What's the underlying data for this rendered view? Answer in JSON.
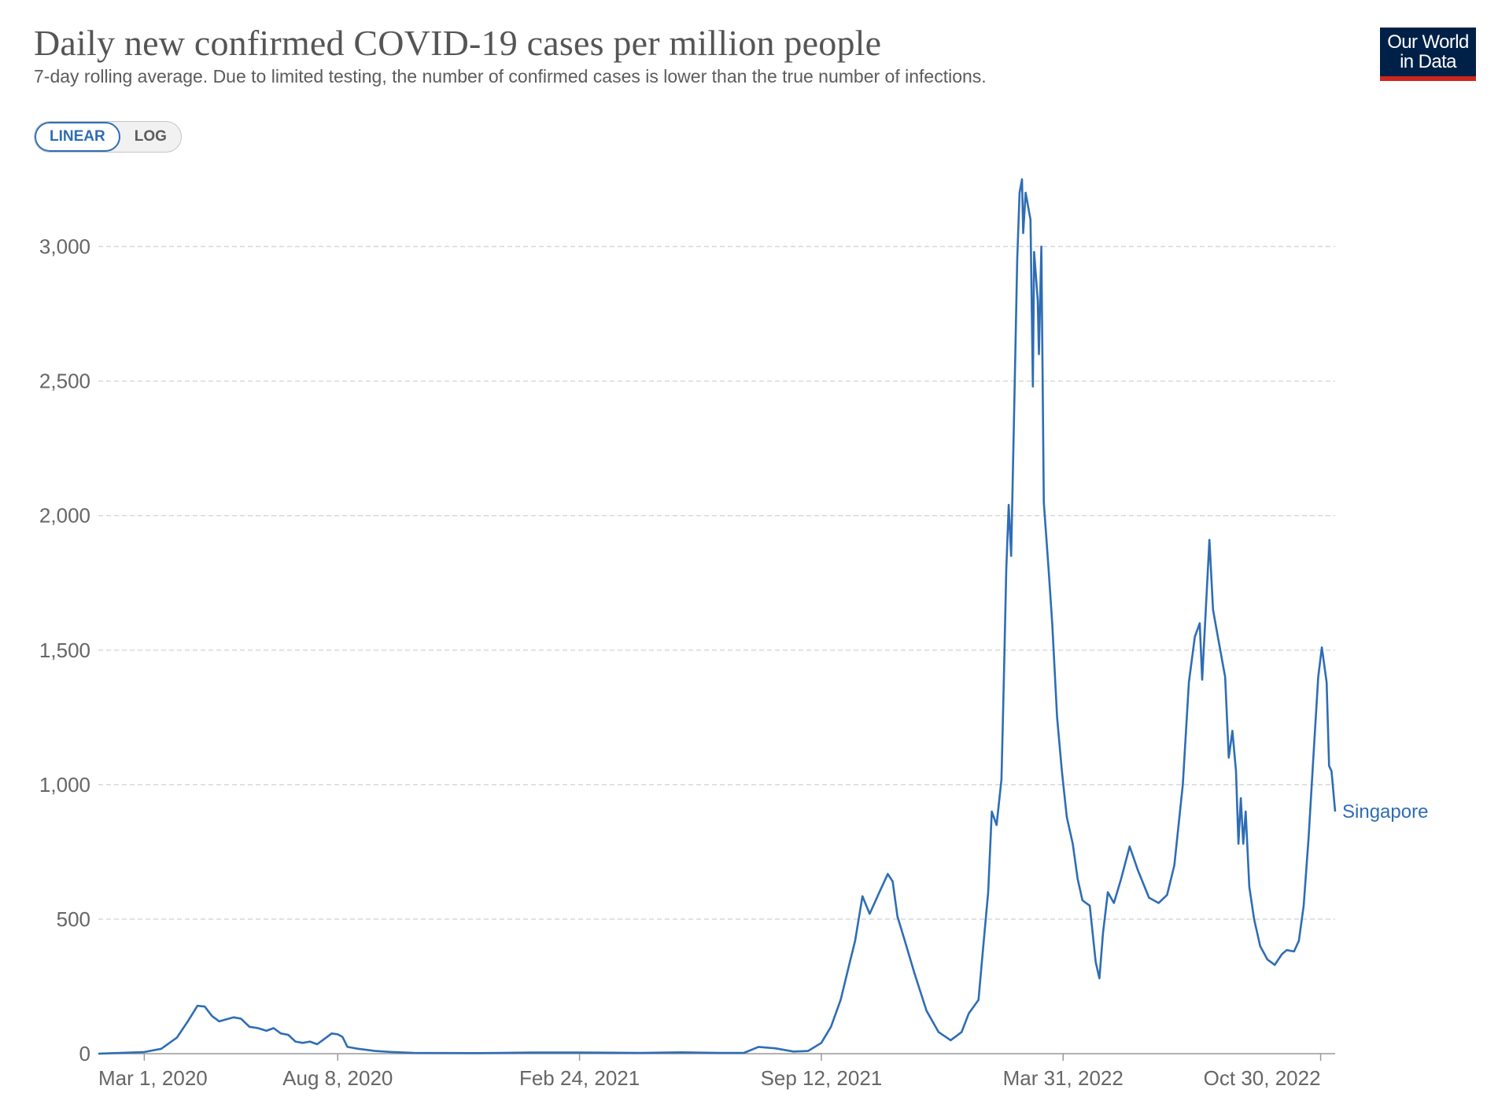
{
  "header": {
    "title": "Daily new confirmed COVID-19 cases per million people",
    "subtitle": "7-day rolling average. Due to limited testing, the number of confirmed cases is lower than the true number of infections.",
    "logo_line1": "Our World",
    "logo_line2": "in Data"
  },
  "scale_toggle": {
    "linear_label": "LINEAR",
    "log_label": "LOG",
    "selected": "LINEAR"
  },
  "colors": {
    "series": "#2e6db5",
    "grid": "#d8d8d8",
    "axis": "#999999",
    "logo_bg": "#002147",
    "logo_accent": "#ce261e"
  },
  "chart_data": {
    "type": "line",
    "title": "Daily new confirmed COVID-19 cases per million people",
    "subtitle": "7-day rolling average. Due to limited testing, the number of confirmed cases is lower than the true number of infections.",
    "x_type": "date",
    "xlim": [
      "2020-01-23",
      "2022-11-11"
    ],
    "ylim": [
      0,
      3250
    ],
    "yticks": [
      0,
      500,
      1000,
      1500,
      2000,
      2500,
      3000
    ],
    "ytick_labels": [
      "0",
      "500",
      "1,000",
      "1,500",
      "2,000",
      "2,500",
      "3,000"
    ],
    "xticks": [
      "2020-03-01",
      "2020-08-08",
      "2021-02-24",
      "2021-09-12",
      "2022-03-31",
      "2022-10-30"
    ],
    "xtick_labels": [
      "Mar 1, 2020",
      "Aug 8, 2020",
      "Feb 24, 2021",
      "Sep 12, 2021",
      "Mar 31, 2022",
      "Oct 30, 2022"
    ],
    "grid": "horizontal dashed",
    "legend": "none",
    "series": [
      {
        "name": "Singapore",
        "color": "#2e6db5",
        "points": [
          [
            "2020-01-23",
            0
          ],
          [
            "2020-02-10",
            3
          ],
          [
            "2020-03-01",
            6
          ],
          [
            "2020-03-15",
            18
          ],
          [
            "2020-03-28",
            60
          ],
          [
            "2020-04-06",
            120
          ],
          [
            "2020-04-14",
            178
          ],
          [
            "2020-04-20",
            175
          ],
          [
            "2020-04-26",
            140
          ],
          [
            "2020-05-02",
            120
          ],
          [
            "2020-05-08",
            128
          ],
          [
            "2020-05-14",
            135
          ],
          [
            "2020-05-20",
            130
          ],
          [
            "2020-05-27",
            100
          ],
          [
            "2020-06-03",
            95
          ],
          [
            "2020-06-10",
            85
          ],
          [
            "2020-06-16",
            95
          ],
          [
            "2020-06-22",
            75
          ],
          [
            "2020-06-28",
            70
          ],
          [
            "2020-07-04",
            45
          ],
          [
            "2020-07-10",
            40
          ],
          [
            "2020-07-16",
            45
          ],
          [
            "2020-07-22",
            35
          ],
          [
            "2020-07-28",
            55
          ],
          [
            "2020-08-03",
            75
          ],
          [
            "2020-08-08",
            72
          ],
          [
            "2020-08-12",
            62
          ],
          [
            "2020-08-16",
            25
          ],
          [
            "2020-08-25",
            18
          ],
          [
            "2020-09-08",
            10
          ],
          [
            "2020-09-22",
            6
          ],
          [
            "2020-10-10",
            3
          ],
          [
            "2020-12-01",
            2
          ],
          [
            "2021-01-15",
            4
          ],
          [
            "2021-02-24",
            4
          ],
          [
            "2021-04-15",
            3
          ],
          [
            "2021-05-20",
            5
          ],
          [
            "2021-06-20",
            3
          ],
          [
            "2021-07-10",
            3
          ],
          [
            "2021-07-22",
            25
          ],
          [
            "2021-08-05",
            20
          ],
          [
            "2021-08-20",
            8
          ],
          [
            "2021-09-01",
            10
          ],
          [
            "2021-09-12",
            40
          ],
          [
            "2021-09-20",
            100
          ],
          [
            "2021-09-28",
            200
          ],
          [
            "2021-10-05",
            330
          ],
          [
            "2021-10-10",
            420
          ],
          [
            "2021-10-16",
            585
          ],
          [
            "2021-10-22",
            520
          ],
          [
            "2021-10-30",
            600
          ],
          [
            "2021-11-06",
            668
          ],
          [
            "2021-11-10",
            640
          ],
          [
            "2021-11-14",
            510
          ],
          [
            "2021-11-20",
            420
          ],
          [
            "2021-11-28",
            300
          ],
          [
            "2021-12-08",
            160
          ],
          [
            "2021-12-18",
            80
          ],
          [
            "2021-12-28",
            50
          ],
          [
            "2022-01-06",
            80
          ],
          [
            "2022-01-12",
            150
          ],
          [
            "2022-01-20",
            200
          ],
          [
            "2022-01-24",
            400
          ],
          [
            "2022-01-28",
            600
          ],
          [
            "2022-01-31",
            900
          ],
          [
            "2022-02-04",
            850
          ],
          [
            "2022-02-08",
            1020
          ],
          [
            "2022-02-10",
            1400
          ],
          [
            "2022-02-12",
            1800
          ],
          [
            "2022-02-14",
            2040
          ],
          [
            "2022-02-16",
            1850
          ],
          [
            "2022-02-19",
            2500
          ],
          [
            "2022-02-21",
            2950
          ],
          [
            "2022-02-23",
            3200
          ],
          [
            "2022-02-25",
            3250
          ],
          [
            "2022-02-26",
            3050
          ],
          [
            "2022-02-28",
            3200
          ],
          [
            "2022-03-04",
            3100
          ],
          [
            "2022-03-06",
            2480
          ],
          [
            "2022-03-07",
            2980
          ],
          [
            "2022-03-10",
            2800
          ],
          [
            "2022-03-11",
            2600
          ],
          [
            "2022-03-13",
            3000
          ],
          [
            "2022-03-15",
            2050
          ],
          [
            "2022-03-19",
            1800
          ],
          [
            "2022-03-22",
            1600
          ],
          [
            "2022-03-26",
            1250
          ],
          [
            "2022-03-30",
            1050
          ],
          [
            "2022-04-03",
            880
          ],
          [
            "2022-04-08",
            780
          ],
          [
            "2022-04-12",
            650
          ],
          [
            "2022-04-16",
            570
          ],
          [
            "2022-04-22",
            550
          ],
          [
            "2022-04-27",
            340
          ],
          [
            "2022-04-30",
            280
          ],
          [
            "2022-05-03",
            450
          ],
          [
            "2022-05-07",
            600
          ],
          [
            "2022-05-12",
            560
          ],
          [
            "2022-05-18",
            650
          ],
          [
            "2022-05-25",
            770
          ],
          [
            "2022-06-01",
            680
          ],
          [
            "2022-06-10",
            580
          ],
          [
            "2022-06-18",
            560
          ],
          [
            "2022-06-25",
            590
          ],
          [
            "2022-07-01",
            700
          ],
          [
            "2022-07-08",
            1000
          ],
          [
            "2022-07-13",
            1380
          ],
          [
            "2022-07-18",
            1550
          ],
          [
            "2022-07-22",
            1600
          ],
          [
            "2022-07-24",
            1390
          ],
          [
            "2022-07-27",
            1650
          ],
          [
            "2022-07-30",
            1910
          ],
          [
            "2022-08-02",
            1650
          ],
          [
            "2022-08-06",
            1550
          ],
          [
            "2022-08-12",
            1400
          ],
          [
            "2022-08-15",
            1100
          ],
          [
            "2022-08-18",
            1200
          ],
          [
            "2022-08-21",
            1050
          ],
          [
            "2022-08-23",
            780
          ],
          [
            "2022-08-25",
            950
          ],
          [
            "2022-08-27",
            780
          ],
          [
            "2022-08-29",
            900
          ],
          [
            "2022-09-01",
            620
          ],
          [
            "2022-09-05",
            500
          ],
          [
            "2022-09-10",
            400
          ],
          [
            "2022-09-16",
            350
          ],
          [
            "2022-09-22",
            330
          ],
          [
            "2022-09-28",
            370
          ],
          [
            "2022-10-02",
            385
          ],
          [
            "2022-10-08",
            380
          ],
          [
            "2022-10-12",
            420
          ],
          [
            "2022-10-16",
            550
          ],
          [
            "2022-10-20",
            800
          ],
          [
            "2022-10-24",
            1100
          ],
          [
            "2022-10-28",
            1400
          ],
          [
            "2022-10-31",
            1510
          ],
          [
            "2022-11-04",
            1380
          ],
          [
            "2022-11-06",
            1070
          ],
          [
            "2022-11-08",
            1050
          ],
          [
            "2022-11-11",
            900
          ]
        ]
      }
    ]
  }
}
